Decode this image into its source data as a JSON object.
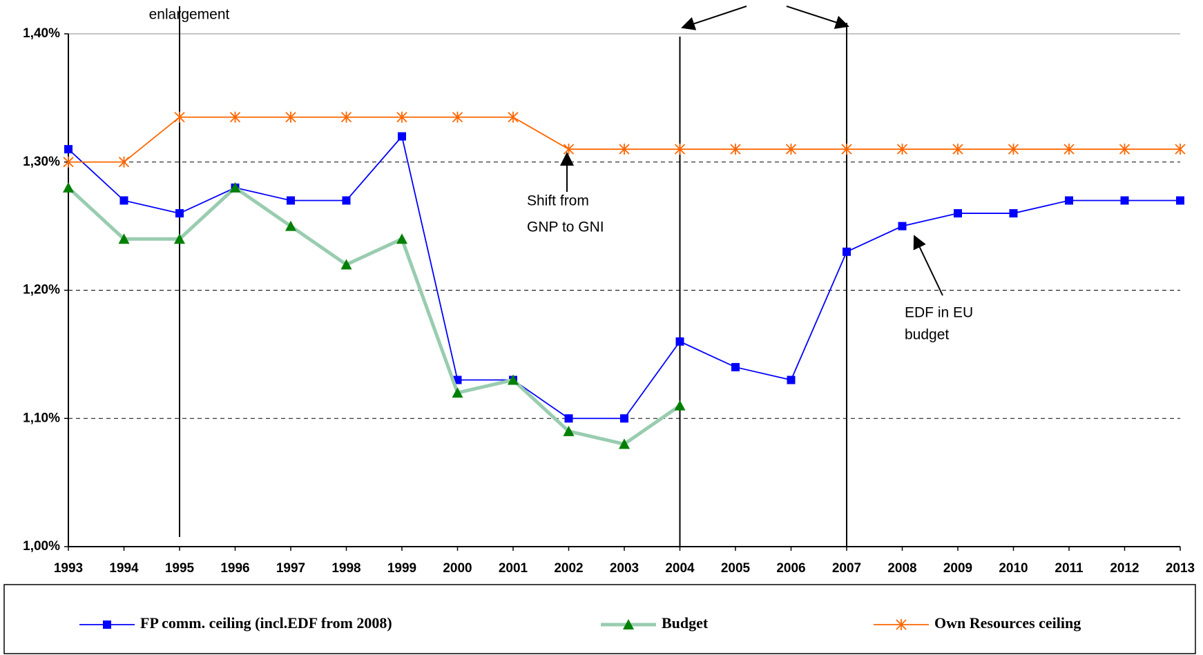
{
  "chart_data": {
    "type": "line",
    "categories": [
      "1993",
      "1994",
      "1995",
      "1996",
      "1997",
      "1998",
      "1999",
      "2000",
      "2001",
      "2002",
      "2003",
      "2004",
      "2005",
      "2006",
      "2007",
      "2008",
      "2009",
      "2010",
      "2011",
      "2012",
      "2013"
    ],
    "series": [
      {
        "name": "FP comm. ceiling (incl.EDF from 2008)",
        "color": "#0000ff",
        "marker": "square",
        "marker_color": "#0000ff",
        "values": [
          1.31,
          1.27,
          1.26,
          1.28,
          1.27,
          1.27,
          1.32,
          1.13,
          1.13,
          1.1,
          1.1,
          1.16,
          1.14,
          1.13,
          1.23,
          1.25,
          1.26,
          1.26,
          1.27,
          1.27,
          1.27
        ]
      },
      {
        "name": "Budget",
        "color": "#99ccb0",
        "marker": "triangle",
        "marker_color": "#008000",
        "values": [
          1.28,
          1.24,
          1.24,
          1.28,
          1.25,
          1.22,
          1.24,
          1.12,
          1.13,
          1.09,
          1.08,
          1.11,
          null,
          null,
          null,
          null,
          null,
          null,
          null,
          null,
          null
        ]
      },
      {
        "name": "Own Resources ceiling",
        "color": "#ff6600",
        "marker": "star",
        "marker_color": "#ff6600",
        "values": [
          1.3,
          1.3,
          1.335,
          1.335,
          1.335,
          1.335,
          1.335,
          1.335,
          1.335,
          1.31,
          1.31,
          1.31,
          1.31,
          1.31,
          1.31,
          1.31,
          1.31,
          1.31,
          1.31,
          1.31,
          1.31
        ]
      }
    ],
    "ylim": [
      1.0,
      1.4
    ],
    "yticks": [
      {
        "value": 1.0,
        "label": "1,00%"
      },
      {
        "value": 1.1,
        "label": "1,10%"
      },
      {
        "value": 1.2,
        "label": "1,20%"
      },
      {
        "value": 1.3,
        "label": "1,30%"
      },
      {
        "value": 1.4,
        "label": "1,40%"
      }
    ],
    "grid": true,
    "legend": "bottom",
    "annotations": [
      [
        "enlargement"
      ],
      [
        "Shift from",
        "GNP to GNI"
      ],
      [
        "EDF in EU",
        "budget"
      ]
    ]
  }
}
